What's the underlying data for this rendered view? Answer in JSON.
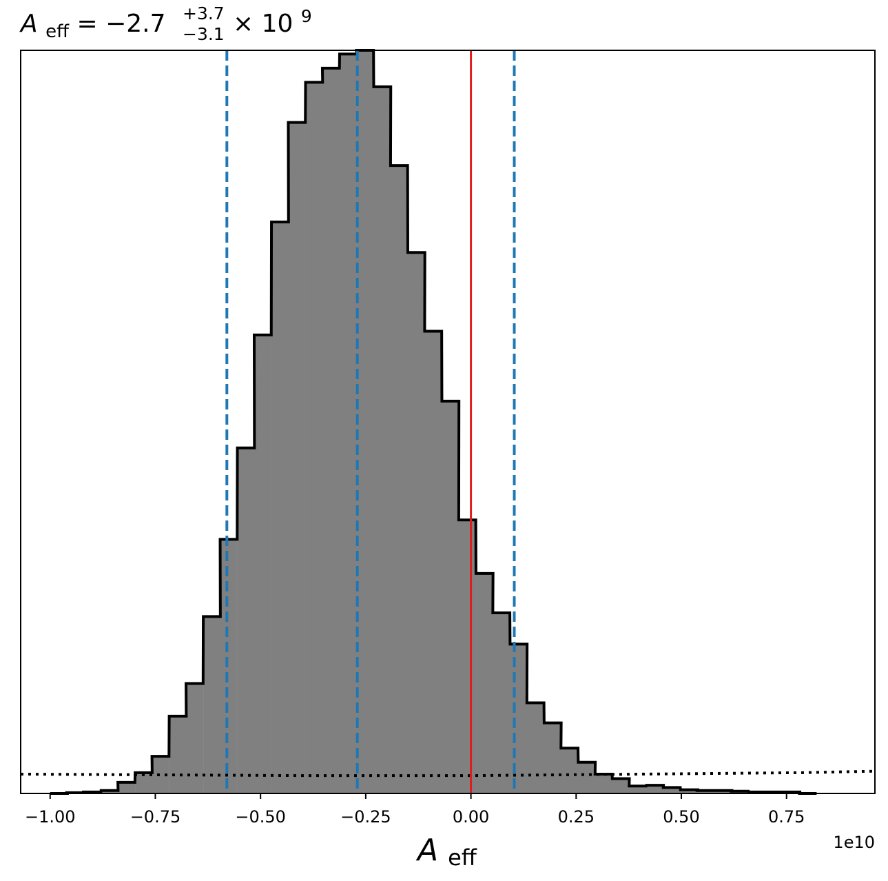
{
  "title": {
    "symbol": "A",
    "subscript": "eff",
    "equals": " = ",
    "value": "−2.7",
    "plus_err": "+3.7",
    "minus_err": "−3.1",
    "times": " × 10",
    "exponent": "9"
  },
  "xlabel": {
    "symbol": "A",
    "subscript": "eff"
  },
  "offset_label": "1e10",
  "chart_data": {
    "type": "histogram",
    "x_units_scale": 10000000000.0,
    "xlim": [
      -1.07,
      0.96
    ],
    "ylim": [
      0,
      1.0
    ],
    "y_ticks_shown": false,
    "grid": false,
    "x_ticks": [
      -1.0,
      -0.75,
      -0.5,
      -0.25,
      0.0,
      0.25,
      0.5,
      0.75
    ],
    "x_tick_labels": [
      "−1.00",
      "−0.75",
      "−0.50",
      "−0.25",
      "0.00",
      "0.25",
      "0.50",
      "0.75"
    ],
    "histogram": {
      "bin_width": 0.0405,
      "fill_color": "#808080",
      "edge_color": "#000000",
      "bins": [
        {
          "x0": -1.0,
          "density": 0.0
        },
        {
          "x0": -0.96,
          "density": 0.001
        },
        {
          "x0": -0.92,
          "density": 0.002
        },
        {
          "x0": -0.879,
          "density": 0.004
        },
        {
          "x0": -0.839,
          "density": 0.015
        },
        {
          "x0": -0.798,
          "density": 0.028
        },
        {
          "x0": -0.758,
          "density": 0.05
        },
        {
          "x0": -0.717,
          "density": 0.104
        },
        {
          "x0": -0.677,
          "density": 0.148
        },
        {
          "x0": -0.636,
          "density": 0.238
        },
        {
          "x0": -0.596,
          "density": 0.342
        },
        {
          "x0": -0.555,
          "density": 0.465
        },
        {
          "x0": -0.515,
          "density": 0.617
        },
        {
          "x0": -0.474,
          "density": 0.769
        },
        {
          "x0": -0.434,
          "density": 0.903
        },
        {
          "x0": -0.393,
          "density": 0.957
        },
        {
          "x0": -0.353,
          "density": 0.976
        },
        {
          "x0": -0.312,
          "density": 0.995
        },
        {
          "x0": -0.272,
          "density": 1.0
        },
        {
          "x0": -0.231,
          "density": 0.951
        },
        {
          "x0": -0.191,
          "density": 0.845
        },
        {
          "x0": -0.15,
          "density": 0.728
        },
        {
          "x0": -0.11,
          "density": 0.622
        },
        {
          "x0": -0.069,
          "density": 0.528
        },
        {
          "x0": -0.029,
          "density": 0.368
        },
        {
          "x0": 0.012,
          "density": 0.296
        },
        {
          "x0": 0.052,
          "density": 0.243
        },
        {
          "x0": 0.093,
          "density": 0.201
        },
        {
          "x0": 0.133,
          "density": 0.122
        },
        {
          "x0": 0.174,
          "density": 0.095
        },
        {
          "x0": 0.214,
          "density": 0.061
        },
        {
          "x0": 0.255,
          "density": 0.042
        },
        {
          "x0": 0.295,
          "density": 0.026
        },
        {
          "x0": 0.336,
          "density": 0.02
        },
        {
          "x0": 0.376,
          "density": 0.01
        },
        {
          "x0": 0.417,
          "density": 0.011
        },
        {
          "x0": 0.457,
          "density": 0.008
        },
        {
          "x0": 0.498,
          "density": 0.005
        },
        {
          "x0": 0.538,
          "density": 0.004
        },
        {
          "x0": 0.579,
          "density": 0.004
        },
        {
          "x0": 0.619,
          "density": 0.003
        },
        {
          "x0": 0.66,
          "density": 0.002
        },
        {
          "x0": 0.7,
          "density": 0.002
        },
        {
          "x0": 0.741,
          "density": 0.002
        },
        {
          "x0": 0.781,
          "density": 0.0
        }
      ]
    },
    "vertical_lines": [
      {
        "name": "lower-quantile",
        "x": -0.58,
        "color": "#1f77b4",
        "style": "dashed"
      },
      {
        "name": "median",
        "x": -0.27,
        "color": "#1f77b4",
        "style": "dashed"
      },
      {
        "name": "upper-quantile",
        "x": 0.103,
        "color": "#1f77b4",
        "style": "dashed"
      },
      {
        "name": "reference",
        "x": 0.0,
        "color": "#e31a1c",
        "style": "solid"
      }
    ],
    "prior_curve": {
      "style": "dotted",
      "color": "#000000",
      "points": [
        [
          -1.07,
          0.026
        ],
        [
          -0.4,
          0.024
        ],
        [
          0.0,
          0.024
        ],
        [
          0.4,
          0.026
        ],
        [
          0.79,
          0.028
        ],
        [
          0.96,
          0.03
        ]
      ]
    }
  }
}
